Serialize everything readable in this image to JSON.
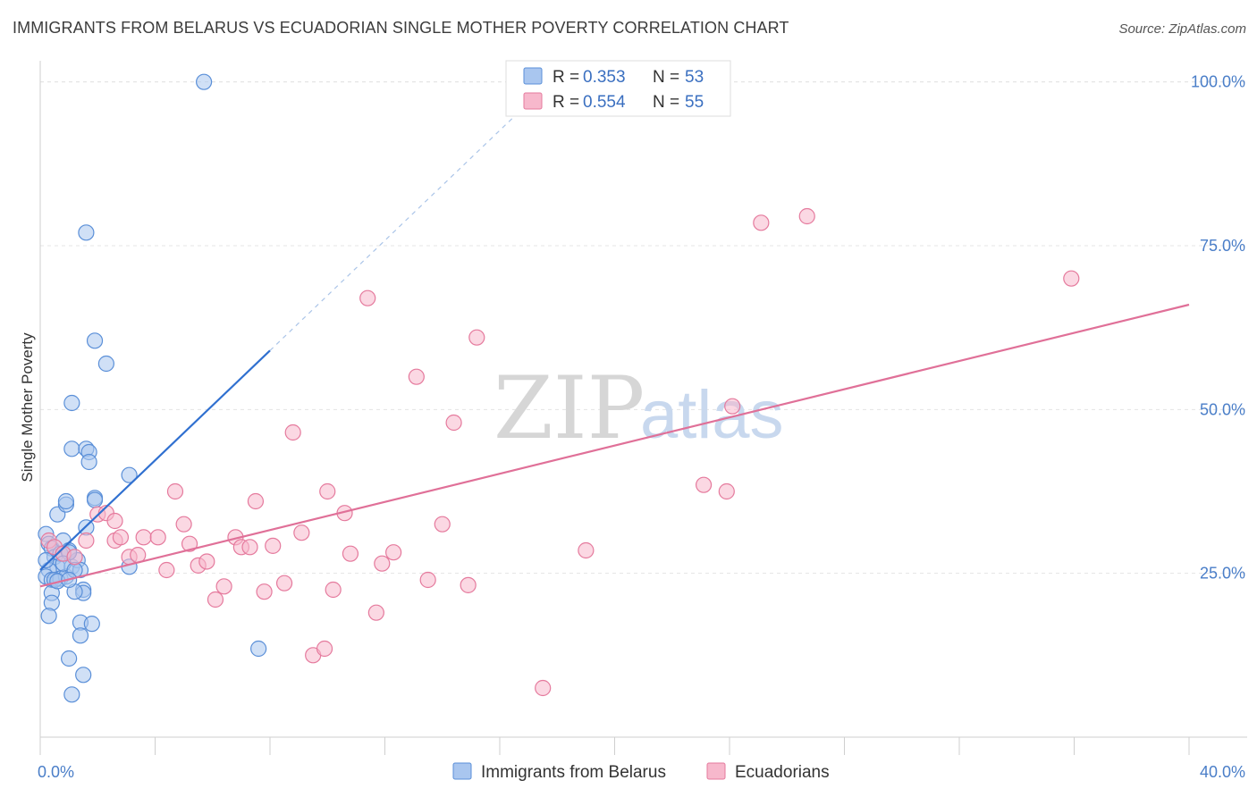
{
  "header": {
    "title": "IMMIGRANTS FROM BELARUS VS ECUADORIAN SINGLE MOTHER POVERTY CORRELATION CHART",
    "source": "Source: ZipAtlas.com"
  },
  "watermark": {
    "zip": "ZIP",
    "atlas": "atlas"
  },
  "chart_data": {
    "type": "scatter",
    "title": "IMMIGRANTS FROM BELARUS VS ECUADORIAN SINGLE MOTHER POVERTY CORRELATION CHART",
    "ylabel": "Single Mother Poverty",
    "xlabel": "",
    "xlim": [
      0,
      40
    ],
    "ylim": [
      0,
      105
    ],
    "x_tick_labels": [
      {
        "value": 0,
        "label": "0.0%"
      },
      {
        "value": 40,
        "label": "40.0%"
      }
    ],
    "y_tick_labels": [
      {
        "value": 25,
        "label": "25.0%"
      },
      {
        "value": 50,
        "label": "50.0%"
      },
      {
        "value": 75,
        "label": "75.0%"
      },
      {
        "value": 100,
        "label": "100.0%"
      }
    ],
    "grid": true,
    "legend_placement": "top-center",
    "stats_legend": [
      {
        "r_label": "R = ",
        "r_value": "0.353",
        "n_label": "N = ",
        "n_value": "53",
        "color": "#a9c6ef",
        "stroke": "#5a8fd8"
      },
      {
        "r_label": "R = ",
        "r_value": "0.554",
        "n_label": "N = ",
        "n_value": "55",
        "color": "#f7b8cc",
        "stroke": "#e57a9d"
      }
    ],
    "series": [
      {
        "name": "Immigrants from Belarus",
        "color": "#a9c6ef",
        "stroke": "#5a8fd8",
        "line_color": "#3070d0",
        "trend": {
          "x0": 0,
          "y0": 25.5,
          "x1": 8,
          "y1": 59,
          "dash_x1": 18,
          "dash_y1": 101
        },
        "points": [
          [
            0.2,
            31.0
          ],
          [
            0.3,
            29.5
          ],
          [
            0.4,
            28.8
          ],
          [
            0.5,
            27.5
          ],
          [
            0.6,
            26.0
          ],
          [
            0.3,
            25.5
          ],
          [
            0.2,
            24.5
          ],
          [
            0.4,
            24.0
          ],
          [
            0.7,
            24.2
          ],
          [
            0.9,
            24.5
          ],
          [
            1.1,
            26.0
          ],
          [
            0.8,
            30.0
          ],
          [
            1.0,
            28.5
          ],
          [
            1.3,
            27.0
          ],
          [
            1.4,
            25.5
          ],
          [
            0.6,
            34.0
          ],
          [
            0.9,
            35.5
          ],
          [
            0.9,
            36.0
          ],
          [
            1.1,
            51.0
          ],
          [
            1.1,
            44.0
          ],
          [
            1.6,
            44.0
          ],
          [
            1.7,
            43.5
          ],
          [
            1.7,
            42.0
          ],
          [
            1.9,
            36.5
          ],
          [
            1.9,
            36.2
          ],
          [
            1.6,
            32.0
          ],
          [
            1.5,
            22.5
          ],
          [
            1.5,
            22.0
          ],
          [
            1.2,
            22.2
          ],
          [
            0.4,
            22.0
          ],
          [
            0.4,
            20.5
          ],
          [
            0.3,
            18.5
          ],
          [
            1.4,
            17.5
          ],
          [
            1.8,
            17.3
          ],
          [
            1.4,
            15.5
          ],
          [
            1.0,
            12.0
          ],
          [
            1.5,
            9.5
          ],
          [
            1.1,
            6.5
          ],
          [
            1.6,
            77.0
          ],
          [
            1.9,
            60.5
          ],
          [
            2.3,
            57.0
          ],
          [
            3.1,
            40.0
          ],
          [
            3.1,
            26.0
          ],
          [
            5.7,
            100.0
          ],
          [
            7.6,
            13.5
          ],
          [
            0.5,
            24.0
          ],
          [
            0.7,
            28.0
          ],
          [
            1.0,
            28.2
          ],
          [
            0.8,
            26.5
          ],
          [
            1.2,
            25.5
          ],
          [
            0.6,
            23.8
          ],
          [
            0.2,
            27.0
          ],
          [
            1.0,
            24.0
          ]
        ]
      },
      {
        "name": "Ecuadorians",
        "color": "#f7b8cc",
        "stroke": "#e57a9d",
        "line_color": "#e07098",
        "trend": {
          "x0": 0,
          "y0": 23.0,
          "x1": 40,
          "y1": 66.0
        },
        "points": [
          [
            0.3,
            30.0
          ],
          [
            0.5,
            29.0
          ],
          [
            0.8,
            28.0
          ],
          [
            1.2,
            27.5
          ],
          [
            1.6,
            30.0
          ],
          [
            2.0,
            34.0
          ],
          [
            2.3,
            34.2
          ],
          [
            2.6,
            33.0
          ],
          [
            2.6,
            30.0
          ],
          [
            3.1,
            27.5
          ],
          [
            3.4,
            27.8
          ],
          [
            3.6,
            30.5
          ],
          [
            4.1,
            30.5
          ],
          [
            4.4,
            25.5
          ],
          [
            4.7,
            37.5
          ],
          [
            5.0,
            32.5
          ],
          [
            5.2,
            29.5
          ],
          [
            5.5,
            26.2
          ],
          [
            5.8,
            26.8
          ],
          [
            6.1,
            21.0
          ],
          [
            6.4,
            23.0
          ],
          [
            6.8,
            30.5
          ],
          [
            7.0,
            29.0
          ],
          [
            7.3,
            29.0
          ],
          [
            7.5,
            36.0
          ],
          [
            7.8,
            22.2
          ],
          [
            8.1,
            29.2
          ],
          [
            8.5,
            23.5
          ],
          [
            8.8,
            46.5
          ],
          [
            9.1,
            31.2
          ],
          [
            9.5,
            12.5
          ],
          [
            9.9,
            13.5
          ],
          [
            10.0,
            37.5
          ],
          [
            10.2,
            22.5
          ],
          [
            10.6,
            34.2
          ],
          [
            10.8,
            28.0
          ],
          [
            11.4,
            67.0
          ],
          [
            11.7,
            19.0
          ],
          [
            11.9,
            26.5
          ],
          [
            12.3,
            28.2
          ],
          [
            13.1,
            55.0
          ],
          [
            13.5,
            24.0
          ],
          [
            14.0,
            32.5
          ],
          [
            14.4,
            48.0
          ],
          [
            14.9,
            23.2
          ],
          [
            15.2,
            61.0
          ],
          [
            17.5,
            7.5
          ],
          [
            19.0,
            28.5
          ],
          [
            23.1,
            38.5
          ],
          [
            23.9,
            37.5
          ],
          [
            24.1,
            50.5
          ],
          [
            25.1,
            78.5
          ],
          [
            26.7,
            79.5
          ],
          [
            35.9,
            70.0
          ],
          [
            2.8,
            30.5
          ]
        ]
      }
    ]
  },
  "bottom_legend": [
    {
      "label": "Immigrants from Belarus",
      "color": "#a9c6ef",
      "stroke": "#5a8fd8"
    },
    {
      "label": "Ecuadorians",
      "color": "#f7b8cc",
      "stroke": "#e57a9d"
    }
  ]
}
